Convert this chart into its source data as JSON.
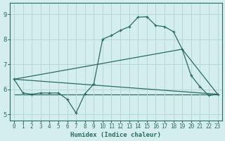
{
  "xlabel": "Humidex (Indice chaleur)",
  "bg_color": "#d4eeed",
  "grid_color": "#b8d8d5",
  "line_color": "#2a6b65",
  "xlim": [
    -0.5,
    23.5
  ],
  "ylim": [
    4.75,
    9.45
  ],
  "xticks": [
    0,
    1,
    2,
    3,
    4,
    5,
    6,
    7,
    8,
    9,
    10,
    11,
    12,
    13,
    14,
    15,
    16,
    17,
    18,
    19,
    20,
    21,
    22,
    23
  ],
  "yticks": [
    5,
    6,
    7,
    8,
    9
  ],
  "series1_x": [
    0,
    1,
    2,
    3,
    4,
    5,
    6,
    7,
    8,
    9,
    10,
    11,
    12,
    13,
    14,
    15,
    16,
    17,
    18,
    19,
    20,
    21,
    22,
    23
  ],
  "series1_y": [
    6.4,
    5.85,
    5.8,
    5.85,
    5.85,
    5.85,
    5.6,
    5.05,
    5.82,
    6.2,
    8.0,
    8.15,
    8.35,
    8.5,
    8.88,
    8.9,
    8.55,
    8.5,
    8.3,
    7.6,
    6.55,
    6.1,
    5.75,
    5.8
  ],
  "series2_x": [
    0,
    23
  ],
  "series2_y": [
    6.4,
    5.8
  ],
  "series3_x": [
    0,
    19,
    23
  ],
  "series3_y": [
    6.4,
    7.6,
    5.8
  ],
  "series4_x": [
    0,
    23
  ],
  "series4_y": [
    5.8,
    5.8
  ]
}
